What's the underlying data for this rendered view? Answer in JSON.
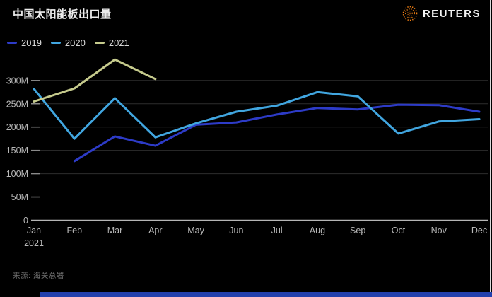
{
  "header": {
    "title": "中国太阳能板出口量",
    "brand": "REUTERS"
  },
  "legend": [
    {
      "label": "2019",
      "color": "#2d3bc7"
    },
    {
      "label": "2020",
      "color": "#41a6e0"
    },
    {
      "label": "2021",
      "color": "#c6cb8d"
    }
  ],
  "source": "来源: 海关总署",
  "colors": {
    "background": "#000000",
    "grid": "#2d2d2d",
    "zero_axis": "#b5b5b5",
    "tick": "#8a8a8a",
    "axis_text": "#b8b8b8",
    "logo_orange": "#f07f13",
    "bottom_bar": "#2340ad",
    "edge_line": "#dcdcdc"
  },
  "chart_data": {
    "type": "line",
    "title": "中国太阳能板出口量",
    "x": [
      "Jan",
      "Feb",
      "Mar",
      "Apr",
      "May",
      "Jun",
      "Jul",
      "Aug",
      "Sep",
      "Oct",
      "Nov",
      "Dec"
    ],
    "x_sub_label": "2021",
    "xlabel": "",
    "ylabel": "",
    "unit": "M",
    "y_ticks": [
      300,
      250,
      200,
      150,
      100,
      50,
      0
    ],
    "y_tick_labels": [
      "300M",
      "250M",
      "200M",
      "150M",
      "100M",
      "50M",
      "0"
    ],
    "ylim": [
      0,
      350
    ],
    "grid": true,
    "legend_position": "top-left",
    "series": [
      {
        "name": "2019",
        "color": "#2d3bc7",
        "values": [
          null,
          127,
          180,
          160,
          205,
          210,
          227,
          241,
          238,
          248,
          247,
          233
        ]
      },
      {
        "name": "2020",
        "color": "#41a6e0",
        "values": [
          282,
          175,
          262,
          178,
          208,
          233,
          246,
          275,
          266,
          186,
          212,
          217
        ]
      },
      {
        "name": "2021",
        "color": "#c6cb8d",
        "values": [
          255,
          283,
          345,
          303,
          null,
          null,
          null,
          null,
          null,
          null,
          null,
          null
        ]
      }
    ]
  }
}
